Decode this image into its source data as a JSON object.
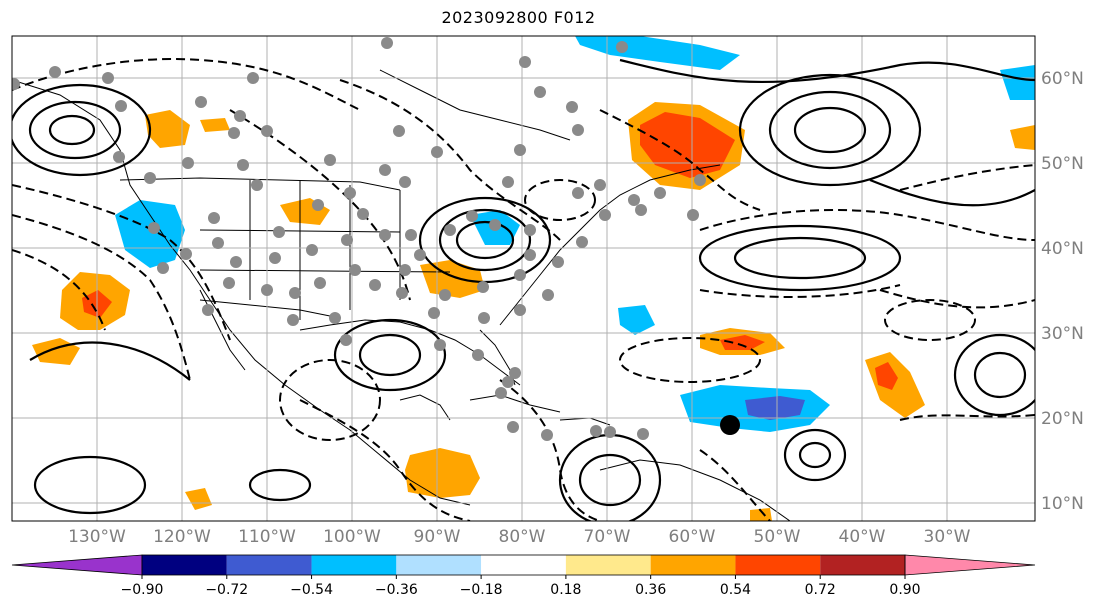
{
  "title": "2023092800 F012",
  "colors": {
    "land_border": "#000000",
    "grid": "#b0b0b0",
    "contour": "#000000",
    "axis_label": "#7f7f7f"
  },
  "axes": {
    "lon_ticks": [
      "130°W",
      "120°W",
      "110°W",
      "100°W",
      "90°W",
      "80°W",
      "70°W",
      "60°W",
      "50°W",
      "40°W",
      "30°W"
    ],
    "lat_ticks": [
      "60°N",
      "50°N",
      "40°N",
      "30°N",
      "20°N",
      "10°N"
    ]
  },
  "colorbar": {
    "levels": [
      "−0.90",
      "−0.72",
      "−0.54",
      "−0.36",
      "−0.18",
      "0.18",
      "0.36",
      "0.54",
      "0.72",
      "0.90"
    ],
    "colors": [
      "#9933cc",
      "#000080",
      "#3f5bd1",
      "#00bfff",
      "#b0e0ff",
      "#ffffff",
      "#ffe98c",
      "#ffa500",
      "#ff4500",
      "#b22222",
      "#ff88aa"
    ]
  }
}
